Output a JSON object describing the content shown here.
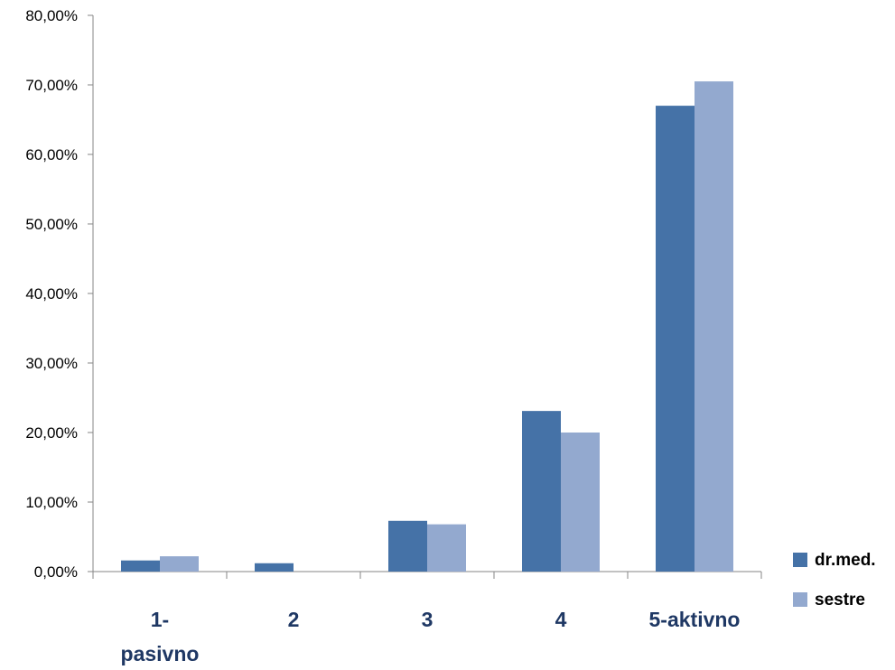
{
  "chart_data": {
    "type": "bar",
    "title": "",
    "xlabel": "",
    "ylabel": "",
    "categories": [
      [
        "1-",
        "pasivno"
      ],
      [
        "2"
      ],
      [
        "3"
      ],
      [
        "4"
      ],
      [
        "5-aktivno"
      ]
    ],
    "series": [
      {
        "name": "dr.med.",
        "color": "#4572a7",
        "values": [
          1.6,
          1.2,
          7.3,
          23.1,
          67.0
        ]
      },
      {
        "name": "sestre",
        "color": "#93a9cf",
        "values": [
          2.2,
          0,
          6.8,
          20.0,
          70.5
        ]
      }
    ],
    "ylim": [
      0,
      80
    ],
    "yticks": [
      "0,00%",
      "10,00%",
      "20,00%",
      "30,00%",
      "40,00%",
      "50,00%",
      "60,00%",
      "70,00%",
      "80,00%"
    ],
    "grid": false,
    "legend_position": "right"
  }
}
